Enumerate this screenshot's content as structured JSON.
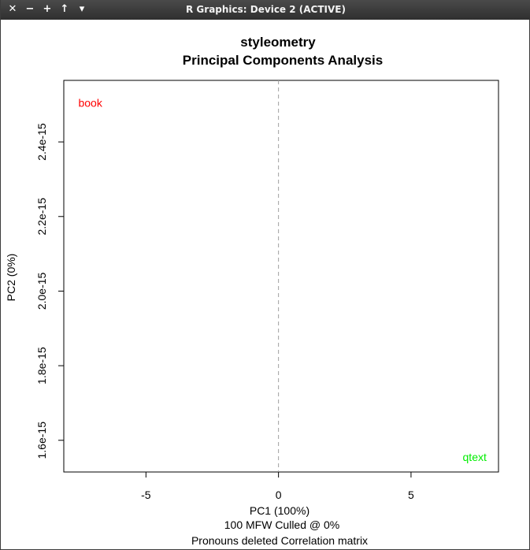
{
  "window": {
    "title": "R Graphics: Device 2 (ACTIVE)",
    "buttons": [
      {
        "name": "close-button",
        "glyph": "✕"
      },
      {
        "name": "minimize-button",
        "glyph": "−"
      },
      {
        "name": "maximize-button",
        "glyph": "+"
      },
      {
        "name": "raise-button",
        "glyph": "↑"
      },
      {
        "name": "menu-button",
        "glyph": "▾"
      }
    ]
  },
  "chart_data": {
    "type": "scatter",
    "title": "styleometry",
    "subtitle": "Principal Components Analysis",
    "xlabel": "PC1 (100%)",
    "ylabel": "PC2 (0%)",
    "footer": [
      "100 MFW  Culled @ 0%",
      "Pronouns deleted Correlation matrix"
    ],
    "xlim": [
      -8.1,
      8.3
    ],
    "ylim": [
      1.515e-15,
      2.565e-15
    ],
    "xticks": [
      {
        "value": -5,
        "label": "-5"
      },
      {
        "value": 0,
        "label": "0"
      },
      {
        "value": 5,
        "label": "5"
      }
    ],
    "yticks": [
      {
        "value": 1.6e-15,
        "label": "1.6e-15"
      },
      {
        "value": 1.8e-15,
        "label": "1.8e-15"
      },
      {
        "value": 2e-15,
        "label": "2.0e-15"
      },
      {
        "value": 2.2e-15,
        "label": "2.2e-15"
      },
      {
        "value": 2.4e-15,
        "label": "2.4e-15"
      }
    ],
    "vline": {
      "x": 0,
      "style": "dashed",
      "color": "#a0a0a0"
    },
    "points": [
      {
        "label": "book",
        "x": -7.1,
        "y": 2.505e-15,
        "color": "#ff0000"
      },
      {
        "label": "qtext",
        "x": 7.4,
        "y": 1.555e-15,
        "color": "#00ee00"
      }
    ],
    "grid": false,
    "legend": "none"
  }
}
